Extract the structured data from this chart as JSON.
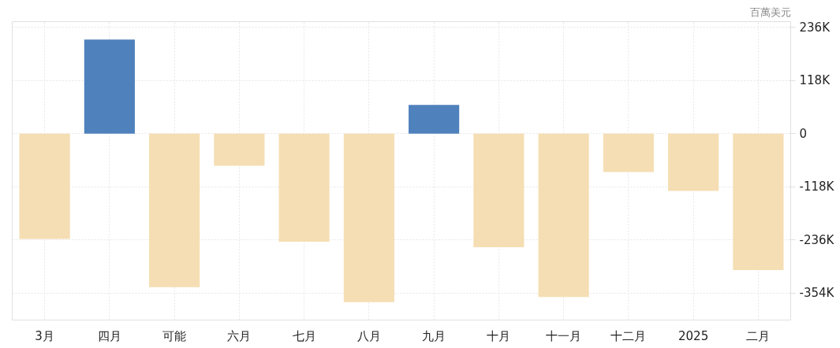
{
  "chart_data": {
    "type": "bar",
    "ylabel": "百萬美元",
    "categories": [
      "3月",
      "四月",
      "可能",
      "六月",
      "七月",
      "八月",
      "九月",
      "十月",
      "十一月",
      "十二月",
      "2025",
      "二月"
    ],
    "values": [
      -234,
      209,
      -341,
      -71,
      -240,
      -374,
      64,
      -252,
      -363,
      -85,
      -127,
      -303
    ],
    "colors": [
      "#f5deb3",
      "#4f81bd",
      "#f5deb3",
      "#f5deb3",
      "#f5deb3",
      "#f5deb3",
      "#4f81bd",
      "#f5deb3",
      "#f5deb3",
      "#f5deb3",
      "#f5deb3",
      "#f5deb3"
    ],
    "ylim": [
      -414,
      249
    ],
    "yticks": [
      {
        "value": 236,
        "label": "236K"
      },
      {
        "value": 118,
        "label": "118K"
      },
      0,
      {
        "value": -118,
        "label": "-118K"
      },
      {
        "value": -236,
        "label": "-236K"
      },
      {
        "value": -354,
        "label": "-354K"
      }
    ],
    "grid": true
  }
}
